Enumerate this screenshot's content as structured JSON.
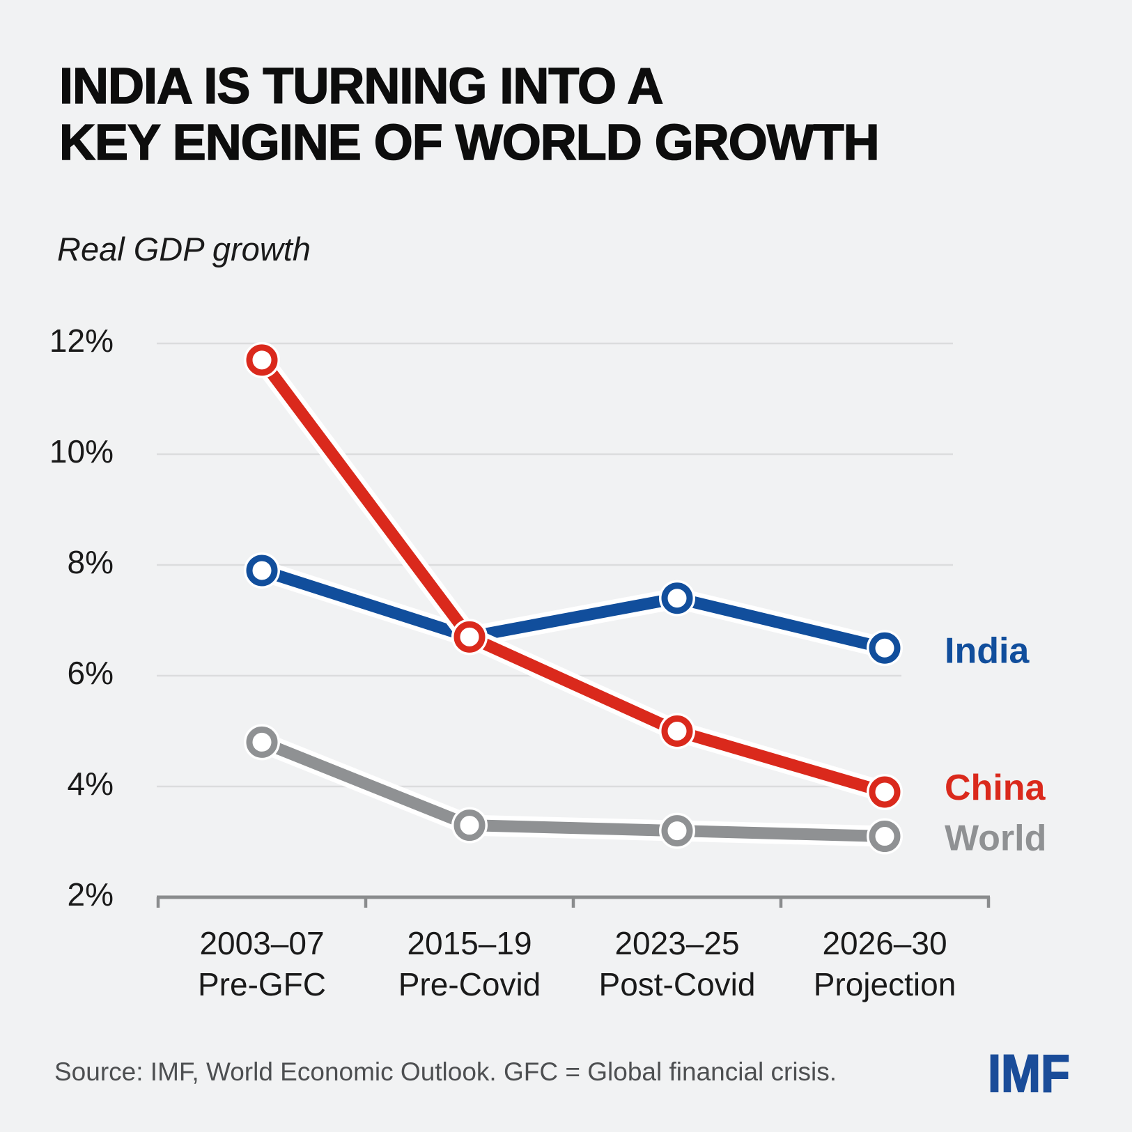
{
  "header": {
    "title": "INDIA IS TURNING INTO A\nKEY ENGINE OF WORLD GROWTH",
    "subtitle": "Real GDP growth"
  },
  "footer": {
    "source": "Source: IMF, World Economic Outlook. GFC = Global financial crisis.",
    "logo": "IMF"
  },
  "colors": {
    "background": "#F1F2F3",
    "gridline": "#DBDCDD",
    "axis": "#8A8C8D",
    "tick_text": "#1A1A1A",
    "india_blue": "#114E9C",
    "china_red": "#DA291C",
    "world_gray": "#8F9193",
    "source_text": "#4D4F51",
    "logo_blue": "#1A4C99"
  },
  "chart_data": {
    "type": "line",
    "title": "Real GDP growth",
    "unit": "%",
    "categories": [
      {
        "period": "2003–07",
        "phase": "Pre-GFC"
      },
      {
        "period": "2015–19",
        "phase": "Pre-Covid"
      },
      {
        "period": "2023–25",
        "phase": "Post-Covid"
      },
      {
        "period": "2026–30",
        "phase": "Projection"
      }
    ],
    "series": [
      {
        "name": "World",
        "color": "#8F9193",
        "values": [
          4.8,
          3.3,
          3.2,
          3.1
        ]
      },
      {
        "name": "India",
        "color": "#114E9C",
        "values": [
          7.9,
          6.7,
          7.4,
          6.5
        ]
      },
      {
        "name": "China",
        "color": "#DA291C",
        "values": [
          11.7,
          6.7,
          5.0,
          3.9
        ]
      }
    ],
    "y_axis": {
      "ticks": [
        12,
        10,
        8,
        6,
        4,
        2
      ],
      "tick_format": "{v}%",
      "min": 2,
      "max": 12.4
    },
    "grid": true,
    "legend_position": "right-of-line-ends",
    "marker": "open-circle"
  }
}
